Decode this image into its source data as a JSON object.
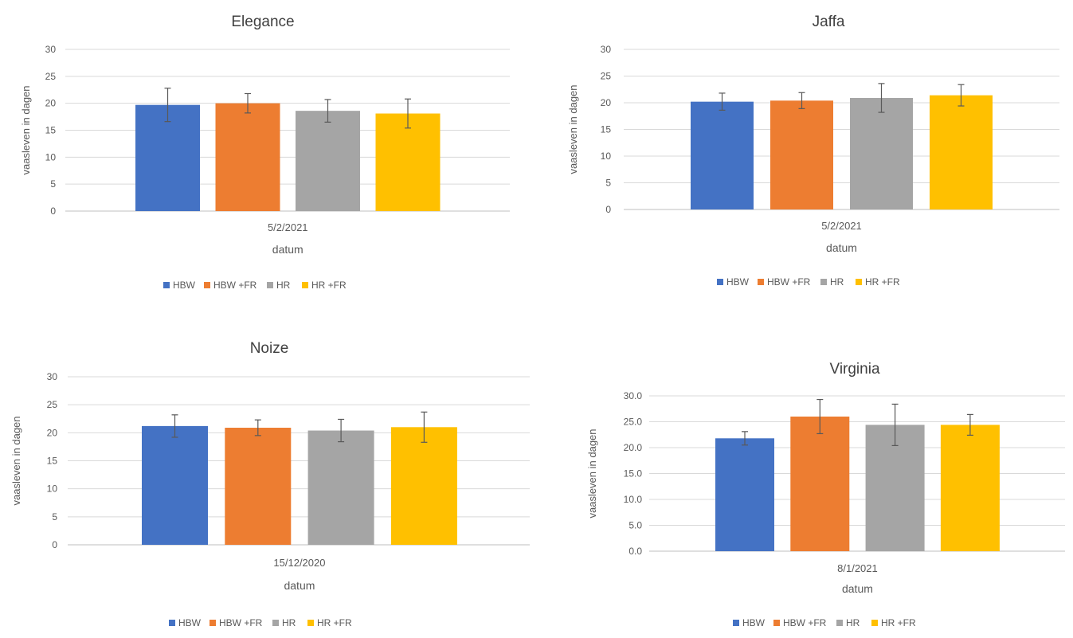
{
  "colors": {
    "HBW": "#4472C4",
    "HBW +FR": "#ED7D31",
    "HR": "#A5A5A5",
    "HR +FR": "#FFC000",
    "gridline": "#d9d9d9",
    "axis_text": "#595959",
    "error_bar": "#595959"
  },
  "chart_data": [
    {
      "type": "bar",
      "title": "Elegance",
      "xlabel": "datum",
      "ylabel": "vaasleven in dagen",
      "categories": [
        "5/2/2021"
      ],
      "ylim": [
        0,
        30
      ],
      "yticks": [
        "0",
        "5",
        "10",
        "15",
        "20",
        "25",
        "30"
      ],
      "grid": true,
      "legend_position": "bottom",
      "series": [
        {
          "name": "HBW",
          "values": [
            19.7
          ],
          "error": [
            3.1
          ]
        },
        {
          "name": "HBW +FR",
          "values": [
            20.0
          ],
          "error": [
            1.8
          ]
        },
        {
          "name": "HR",
          "values": [
            18.6
          ],
          "error": [
            2.1
          ]
        },
        {
          "name": "HR +FR",
          "values": [
            18.1
          ],
          "error": [
            2.7
          ]
        }
      ]
    },
    {
      "type": "bar",
      "title": "Jaffa",
      "xlabel": "datum",
      "ylabel": "vaasleven in dagen",
      "categories": [
        "5/2/2021"
      ],
      "ylim": [
        0,
        30
      ],
      "yticks": [
        "0",
        "5",
        "10",
        "15",
        "20",
        "25",
        "30"
      ],
      "grid": true,
      "legend_position": "bottom",
      "series": [
        {
          "name": "HBW",
          "values": [
            20.2
          ],
          "error": [
            1.6
          ]
        },
        {
          "name": "HBW +FR",
          "values": [
            20.4
          ],
          "error": [
            1.5
          ]
        },
        {
          "name": "HR",
          "values": [
            20.9
          ],
          "error": [
            2.7
          ]
        },
        {
          "name": "HR +FR",
          "values": [
            21.4
          ],
          "error": [
            2.0
          ]
        }
      ]
    },
    {
      "type": "bar",
      "title": "Noize",
      "xlabel": "datum",
      "ylabel": "vaasleven in dagen",
      "categories": [
        "15/12/2020"
      ],
      "ylim": [
        0,
        30
      ],
      "yticks": [
        "0",
        "5",
        "10",
        "15",
        "20",
        "25",
        "30"
      ],
      "grid": true,
      "legend_position": "bottom",
      "series": [
        {
          "name": "HBW",
          "values": [
            21.2
          ],
          "error": [
            2.0
          ]
        },
        {
          "name": "HBW +FR",
          "values": [
            20.9
          ],
          "error": [
            1.4
          ]
        },
        {
          "name": "HR",
          "values": [
            20.4
          ],
          "error": [
            2.0
          ]
        },
        {
          "name": "HR +FR",
          "values": [
            21.0
          ],
          "error": [
            2.7
          ]
        }
      ]
    },
    {
      "type": "bar",
      "title": "Virginia",
      "xlabel": "datum",
      "ylabel": "vaasleven in dagen",
      "categories": [
        "8/1/2021"
      ],
      "ylim": [
        0,
        30
      ],
      "yticks": [
        "0.0",
        "5.0",
        "10.0",
        "15.0",
        "20.0",
        "25.0",
        "30.0"
      ],
      "grid": true,
      "legend_position": "bottom",
      "series": [
        {
          "name": "HBW",
          "values": [
            21.8
          ],
          "error": [
            1.3
          ]
        },
        {
          "name": "HBW +FR",
          "values": [
            26.0
          ],
          "error": [
            3.3
          ]
        },
        {
          "name": "HR",
          "values": [
            24.4
          ],
          "error": [
            4.0
          ]
        },
        {
          "name": "HR +FR",
          "values": [
            24.4
          ],
          "error": [
            2.0
          ]
        }
      ]
    }
  ]
}
